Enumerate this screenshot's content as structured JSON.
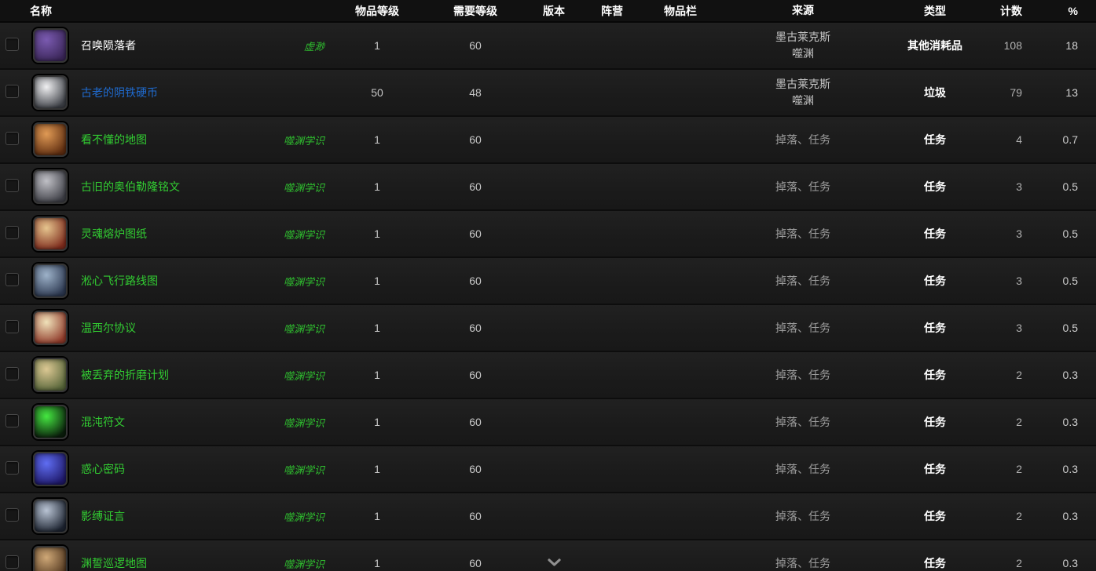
{
  "colors": {
    "quality_common": "#ffffff",
    "quality_rare": "#1f6bd0",
    "quality_uncommon": "#32cd32",
    "tag_green": "#2fbf2f",
    "value_gray": "#c7c7c7",
    "count_gray": "#b0b0b0",
    "percent_gray": "#cfcfcf",
    "source_light": "#c4c4c4",
    "source_muted": "#9d9d9d",
    "type_white": "#ffffff",
    "chevron_gray": "#909090"
  },
  "table": {
    "columns": [
      {
        "key": "name",
        "label": "名称"
      },
      {
        "key": "item_level",
        "label": "物品等级"
      },
      {
        "key": "req_level",
        "label": "需要等级"
      },
      {
        "key": "version",
        "label": "版本"
      },
      {
        "key": "faction",
        "label": "阵营"
      },
      {
        "key": "slot",
        "label": "物品栏"
      },
      {
        "key": "source",
        "label": "来源"
      },
      {
        "key": "type",
        "label": "类型"
      },
      {
        "key": "count",
        "label": "计数"
      },
      {
        "key": "percent",
        "label": "%"
      }
    ],
    "rows": [
      {
        "name": "召唤陨落者",
        "quality": "common",
        "tag": "虚渺",
        "item_level": "1",
        "req_level": "60",
        "version": "",
        "faction": "",
        "slot": "",
        "source": [
          "墨古莱克斯",
          "噬渊"
        ],
        "source_style": "light",
        "type": "其他消耗品",
        "count": "108",
        "percent": "18",
        "icon": {
          "name": "purple-scroll-icon",
          "colors": [
            "#7a5ab0",
            "#3a2658"
          ]
        }
      },
      {
        "name": "古老的阴铁硬币",
        "quality": "rare",
        "tag": "",
        "item_level": "50",
        "req_level": "48",
        "version": "",
        "faction": "",
        "slot": "",
        "source": [
          "墨古莱克斯",
          "噬渊"
        ],
        "source_style": "light",
        "type": "垃圾",
        "count": "79",
        "percent": "13",
        "icon": {
          "name": "stone-coin-icon",
          "colors": [
            "#f0f0f2",
            "#3c3f45"
          ]
        }
      },
      {
        "name": "看不懂的地图",
        "quality": "uncommon",
        "tag": "噬渊学识",
        "item_level": "1",
        "req_level": "60",
        "version": "",
        "faction": "",
        "slot": "",
        "source": [
          "掉落、任务"
        ],
        "source_style": "muted",
        "type": "任务",
        "count": "4",
        "percent": "0.7",
        "icon": {
          "name": "orange-map-icon",
          "colors": [
            "#e09a55",
            "#5e2d10"
          ]
        }
      },
      {
        "name": "古旧的奥伯勒隆铭文",
        "quality": "uncommon",
        "tag": "噬渊学识",
        "item_level": "1",
        "req_level": "60",
        "version": "",
        "faction": "",
        "slot": "",
        "source": [
          "掉落、任务"
        ],
        "source_style": "muted",
        "type": "任务",
        "count": "3",
        "percent": "0.5",
        "icon": {
          "name": "stone-tablet-icon",
          "colors": [
            "#c0c0c6",
            "#3e3f46"
          ]
        }
      },
      {
        "name": "灵魂熔炉图纸",
        "quality": "uncommon",
        "tag": "噬渊学识",
        "item_level": "1",
        "req_level": "60",
        "version": "",
        "faction": "",
        "slot": "",
        "source": [
          "掉落、任务"
        ],
        "source_style": "muted",
        "type": "任务",
        "count": "3",
        "percent": "0.5",
        "icon": {
          "name": "blueprint-scroll-icon",
          "colors": [
            "#e6c58e",
            "#7e2c1d"
          ]
        }
      },
      {
        "name": "淞心飞行路线图",
        "quality": "uncommon",
        "tag": "噬渊学识",
        "item_level": "1",
        "req_level": "60",
        "version": "",
        "faction": "",
        "slot": "",
        "source": [
          "掉落、任务"
        ],
        "source_style": "muted",
        "type": "任务",
        "count": "3",
        "percent": "0.5",
        "icon": {
          "name": "cloth-map-icon",
          "colors": [
            "#9db2c9",
            "#2c3850"
          ]
        }
      },
      {
        "name": "温西尔协议",
        "quality": "uncommon",
        "tag": "噬渊学识",
        "item_level": "1",
        "req_level": "60",
        "version": "",
        "faction": "",
        "slot": "",
        "source": [
          "掉落、任务"
        ],
        "source_style": "muted",
        "type": "任务",
        "count": "3",
        "percent": "0.5",
        "icon": {
          "name": "sealed-scroll-icon",
          "colors": [
            "#f0e2ba",
            "#8f3a2a"
          ]
        }
      },
      {
        "name": "被丢弃的折磨计划",
        "quality": "uncommon",
        "tag": "噬渊学识",
        "item_level": "1",
        "req_level": "60",
        "version": "",
        "faction": "",
        "slot": "",
        "source": [
          "掉落、任务"
        ],
        "source_style": "muted",
        "type": "任务",
        "count": "2",
        "percent": "0.3",
        "icon": {
          "name": "paper-bundle-icon",
          "colors": [
            "#dcc893",
            "#58663a"
          ]
        }
      },
      {
        "name": "混沌符文",
        "quality": "uncommon",
        "tag": "噬渊学识",
        "item_level": "1",
        "req_level": "60",
        "version": "",
        "faction": "",
        "slot": "",
        "source": [
          "掉落、任务"
        ],
        "source_style": "muted",
        "type": "任务",
        "count": "2",
        "percent": "0.3",
        "icon": {
          "name": "green-rune-icon",
          "colors": [
            "#45e841",
            "#0a1d0b"
          ]
        }
      },
      {
        "name": "惑心密码",
        "quality": "uncommon",
        "tag": "噬渊学识",
        "item_level": "1",
        "req_level": "60",
        "version": "",
        "faction": "",
        "slot": "",
        "source": [
          "掉落、任务"
        ],
        "source_style": "muted",
        "type": "任务",
        "count": "2",
        "percent": "0.3",
        "icon": {
          "name": "blue-cube-icon",
          "colors": [
            "#5f6df2",
            "#1e1868"
          ]
        }
      },
      {
        "name": "影缚证言",
        "quality": "uncommon",
        "tag": "噬渊学识",
        "item_level": "1",
        "req_level": "60",
        "version": "",
        "faction": "",
        "slot": "",
        "source": [
          "掉落、任务"
        ],
        "source_style": "muted",
        "type": "任务",
        "count": "2",
        "percent": "0.3",
        "icon": {
          "name": "shadow-sigil-icon",
          "colors": [
            "#b9c4d4",
            "#1c2330"
          ]
        }
      },
      {
        "name": "渊誓巡逻地图",
        "quality": "uncommon",
        "tag": "噬渊学识",
        "item_level": "1",
        "req_level": "60",
        "version": "chevron",
        "faction": "",
        "slot": "",
        "source": [
          "掉落、任务"
        ],
        "source_style": "muted",
        "type": "任务",
        "count": "2",
        "percent": "0.3",
        "icon": {
          "name": "tan-map-icon",
          "colors": [
            "#cfa877",
            "#4e341d"
          ]
        }
      }
    ]
  }
}
